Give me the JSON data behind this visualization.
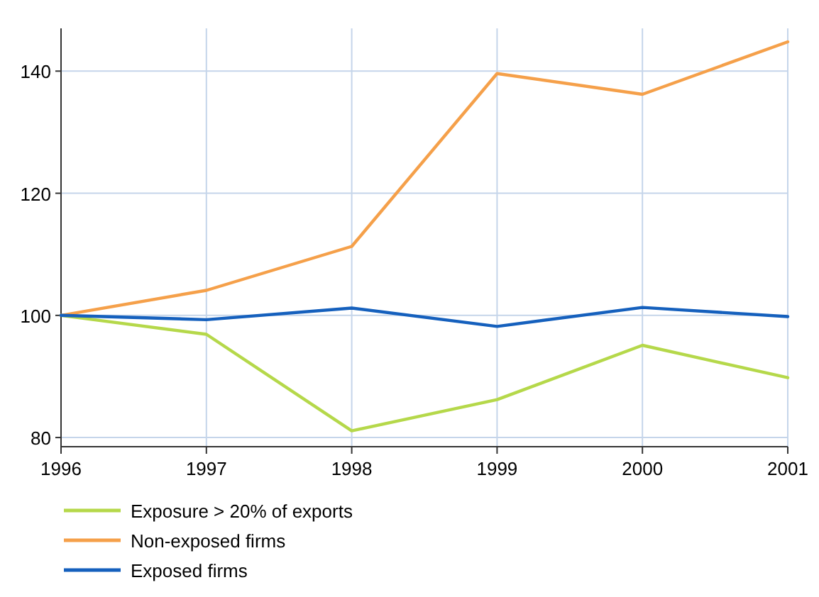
{
  "chart_data": {
    "type": "line",
    "x": [
      1996,
      1997,
      1998,
      1999,
      2000,
      2001
    ],
    "xlim": [
      1996,
      2001
    ],
    "xticks": [
      1996,
      1997,
      1998,
      1999,
      2000,
      2001
    ],
    "ylim": [
      78.5,
      147
    ],
    "yticks": [
      80,
      100,
      120,
      140
    ],
    "grid": true,
    "legend": "bottom",
    "marker": "none",
    "line_style": "solid",
    "series": [
      {
        "name": "Exposure > 20% of exports",
        "color": "#b5d84a",
        "values": [
          100,
          96.9,
          81.1,
          86.2,
          95.1,
          89.8
        ]
      },
      {
        "name": "Non-exposed firms",
        "color": "#f5a04a",
        "values": [
          100,
          104.1,
          111.3,
          139.6,
          136.2,
          144.8
        ]
      },
      {
        "name": "Exposed firms",
        "color": "#1560bd",
        "values": [
          100,
          99.3,
          101.2,
          98.2,
          101.3,
          99.8
        ]
      }
    ]
  }
}
